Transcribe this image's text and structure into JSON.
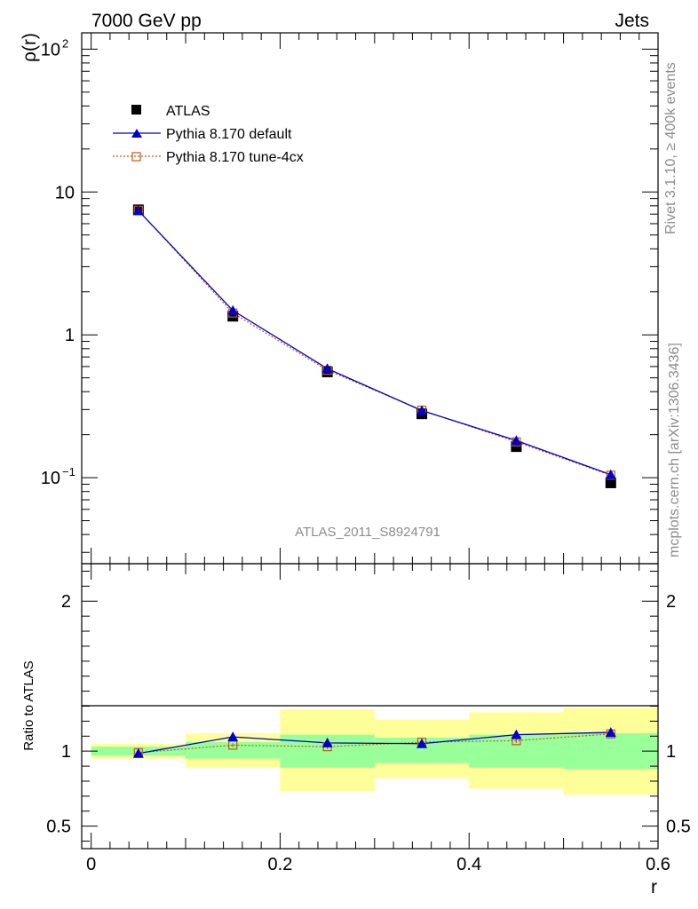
{
  "header": {
    "left": "7000 GeV pp",
    "right": "Jets"
  },
  "side": {
    "rivet": "Rivet 3.1.10, ≥ 400k events",
    "mcplots": "mcplots.cern.ch [arXiv:1306.3436]"
  },
  "watermark": "ATLAS_2011_S8924791",
  "colors": {
    "atlas": "#000000",
    "default": "#0000cc",
    "tune": "#c05a1e",
    "band_inner": "#99ff99",
    "band_outer": "#ffff99"
  },
  "chart_data": [
    {
      "type": "line",
      "panel": "main",
      "ylabel": "ρ(r)",
      "yscale": "log",
      "ylim": [
        0.025,
        130
      ],
      "xlim": [
        -0.01,
        0.6
      ],
      "yticks": [
        {
          "value": 100,
          "base": "10",
          "exp": "2"
        },
        {
          "value": 10,
          "base": "10",
          "exp": ""
        },
        {
          "value": 1,
          "base": "1",
          "exp": ""
        },
        {
          "value": 0.1,
          "base": "10",
          "exp": "−1"
        }
      ],
      "x": [
        0.05,
        0.15,
        0.25,
        0.35,
        0.45,
        0.55
      ],
      "legend": [
        "ATLAS",
        "Pythia 8.170 default",
        "Pythia 8.170 tune-4cx"
      ],
      "series": [
        {
          "name": "ATLAS",
          "marker": "square",
          "values": [
            7.5,
            1.35,
            0.55,
            0.28,
            0.165,
            0.092
          ]
        },
        {
          "name": "Pythia 8.170 default",
          "marker": "triangle",
          "values": [
            7.4,
            1.48,
            0.58,
            0.295,
            0.182,
            0.105
          ]
        },
        {
          "name": "Pythia 8.170 tune-4cx",
          "marker": "open-square",
          "values": [
            7.45,
            1.42,
            0.565,
            0.297,
            0.178,
            0.104
          ]
        }
      ]
    },
    {
      "type": "line",
      "panel": "ratio",
      "ylabel": "Ratio to ATLAS",
      "xlabel": "r",
      "ylim": [
        0.35,
        2.25
      ],
      "xlim": [
        -0.01,
        0.6
      ],
      "yticks": [
        {
          "value": 2,
          "label": "2"
        },
        {
          "value": 1,
          "label": "1"
        },
        {
          "value": 0.5,
          "label": "0.5"
        }
      ],
      "xticks": [
        {
          "value": 0,
          "label": "0"
        },
        {
          "value": 0.2,
          "label": "0.2"
        },
        {
          "value": 0.4,
          "label": "0.4"
        },
        {
          "value": 0.6,
          "label": "0.6"
        }
      ],
      "bins": [
        {
          "lo": 0.0,
          "hi": 0.1,
          "inner": [
            0.97,
            1.03
          ],
          "outer": [
            0.95,
            1.05
          ]
        },
        {
          "lo": 0.1,
          "hi": 0.2,
          "inner": [
            0.95,
            1.06
          ],
          "outer": [
            0.89,
            1.12
          ]
        },
        {
          "lo": 0.2,
          "hi": 0.3,
          "inner": [
            0.89,
            1.11
          ],
          "outer": [
            0.73,
            1.28
          ]
        },
        {
          "lo": 0.3,
          "hi": 0.4,
          "inner": [
            0.92,
            1.09
          ],
          "outer": [
            0.82,
            1.21
          ]
        },
        {
          "lo": 0.4,
          "hi": 0.5,
          "inner": [
            0.89,
            1.11
          ],
          "outer": [
            0.75,
            1.26
          ]
        },
        {
          "lo": 0.5,
          "hi": 0.6,
          "inner": [
            0.88,
            1.12
          ],
          "outer": [
            0.71,
            1.29
          ]
        }
      ],
      "x": [
        0.05,
        0.15,
        0.25,
        0.35,
        0.45,
        0.55
      ],
      "series": [
        {
          "name": "Pythia 8.170 default",
          "values": [
            0.985,
            1.095,
            1.055,
            1.05,
            1.11,
            1.125
          ],
          "err": [
            0.02,
            0.012,
            0.025,
            0.02,
            0.025,
            0.02
          ]
        },
        {
          "name": "Pythia 8.170 tune-4cx",
          "values": [
            0.99,
            1.04,
            1.03,
            1.06,
            1.07,
            1.115
          ],
          "err": [
            0.015,
            0.012,
            0.015,
            0.015,
            0.015,
            0.018
          ]
        }
      ]
    }
  ]
}
